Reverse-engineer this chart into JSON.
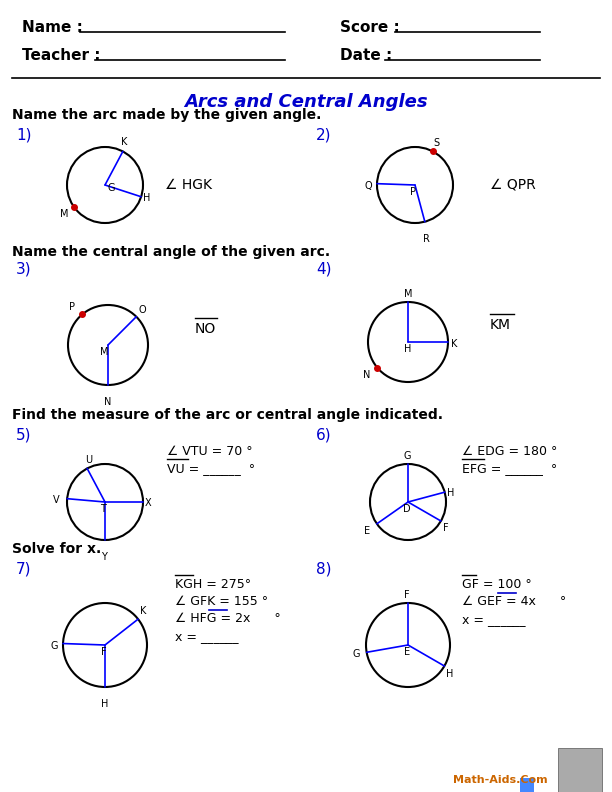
{
  "title": "Arcs and Central Angles",
  "bg_color": "#ffffff",
  "title_color": "#0000cc",
  "number_color": "#0000cc",
  "circle_color": "#000000",
  "line_color": "#0000ff",
  "dot_color": "#cc0000",
  "text_color": "#000000",
  "answer_color": "#0000cc",
  "section1": "Name the arc made by the given angle.",
  "section2": "Name the central angle of the given arc.",
  "section3": "Find the measure of the arc or central angle indicated.",
  "section4": "Solve for x."
}
